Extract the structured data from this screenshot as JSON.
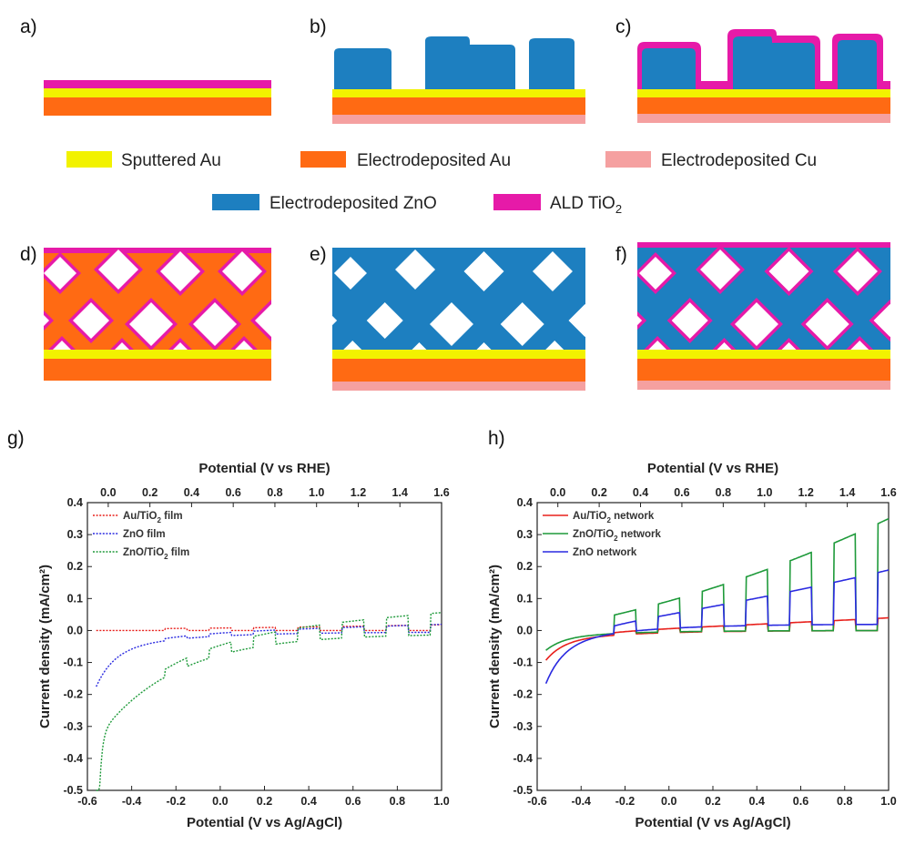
{
  "panels": {
    "a": "a)",
    "b": "b)",
    "c": "c)",
    "d": "d)",
    "e": "e)",
    "f": "f)",
    "g": "g)",
    "h": "h)"
  },
  "colors": {
    "sputtered_au": "#f2f200",
    "electro_au": "#ff6a13",
    "electro_cu": "#f5a0a0",
    "zno": "#1d7fc0",
    "tio2": "#e61aa8"
  },
  "materials_legend": [
    {
      "label": "Sputtered Au",
      "color": "#f2f200"
    },
    {
      "label": "Electrodeposited Au",
      "color": "#ff6a13"
    },
    {
      "label": "Electrodeposited Cu",
      "color": "#f5a0a0"
    },
    {
      "label": "Electrodeposited ZnO",
      "color": "#1d7fc0"
    },
    {
      "label": "ALD TiO",
      "sub": "2",
      "color": "#e61aa8"
    }
  ],
  "chart_data": [
    {
      "type": "line",
      "panel": "g)",
      "xlabel": "Potential (V vs Ag/AgCl)",
      "x2label": "Potential (V vs RHE)",
      "ylabel": "Current density (mA/cm²)",
      "xlim": [
        -0.6,
        1.0
      ],
      "ylim": [
        -0.5,
        0.4
      ],
      "x2lim": [
        -0.1,
        1.6
      ],
      "xticks": [
        "-0.6",
        "-0.4",
        "-0.2",
        "0.0",
        "0.2",
        "0.4",
        "0.6",
        "0.8",
        "1.0"
      ],
      "x2ticks": [
        "0.0",
        "0.2",
        "0.4",
        "0.6",
        "0.8",
        "1.0",
        "1.2",
        "1.4",
        "1.6"
      ],
      "yticks": [
        "-0.5",
        "-0.4",
        "-0.3",
        "-0.2",
        "-0.1",
        "0.0",
        "0.1",
        "0.2",
        "0.3",
        "0.4"
      ],
      "legend_position": "top-left",
      "line_style": "dotted",
      "series": [
        {
          "name": "Au/TiO",
          "sub": "2",
          "tail": " film",
          "color": "#e8201c",
          "dark": 0.0,
          "shift": 0.0,
          "onset": 0.0,
          "photo": [
            0.005,
            0.018
          ]
        },
        {
          "name": "ZnO film",
          "color": "#2a2ae0",
          "dark": -0.005,
          "shift": 0.0,
          "onset": -0.11,
          "photo": [
            0.005,
            0.025
          ]
        },
        {
          "name": "ZnO/TiO",
          "sub": "2",
          "tail": " film",
          "color": "#1e9a3a",
          "dark": -0.01,
          "shift": 0.0,
          "onset": -0.6,
          "photo": [
            0.02,
            0.07
          ]
        }
      ]
    },
    {
      "type": "line",
      "panel": "h)",
      "xlabel": "Potential (V vs Ag/AgCl)",
      "x2label": "Potential (V vs RHE)",
      "ylabel": "Current density (mA/cm²)",
      "xlim": [
        -0.6,
        1.0
      ],
      "ylim": [
        -0.5,
        0.4
      ],
      "x2lim": [
        -0.1,
        1.6
      ],
      "xticks": [
        "-0.6",
        "-0.4",
        "-0.2",
        "0.0",
        "0.2",
        "0.4",
        "0.6",
        "0.8",
        "1.0"
      ],
      "x2ticks": [
        "0.0",
        "0.2",
        "0.4",
        "0.6",
        "0.8",
        "1.0",
        "1.2",
        "1.4",
        "1.6"
      ],
      "yticks": [
        "-0.5",
        "-0.4",
        "-0.3",
        "-0.2",
        "-0.1",
        "0.0",
        "0.1",
        "0.2",
        "0.3",
        "0.4"
      ],
      "legend_position": "top-left",
      "line_style": "solid",
      "series": [
        {
          "name": "Au/TiO",
          "sub": "2",
          "tail": " network",
          "color": "#e8201c",
          "dark": 0.0,
          "onset": -0.06,
          "photo": [
            0.005,
            0.04
          ]
        },
        {
          "name": "ZnO/TiO",
          "sub": "2",
          "tail": " network",
          "color": "#1e9a3a",
          "dark": 0.0,
          "onset": -0.04,
          "photo": [
            0.03,
            0.35
          ]
        },
        {
          "name": "ZnO network",
          "color": "#2a2ae0",
          "dark": 0.02,
          "onset": -0.12,
          "photo": [
            0.01,
            0.17
          ]
        }
      ]
    }
  ]
}
